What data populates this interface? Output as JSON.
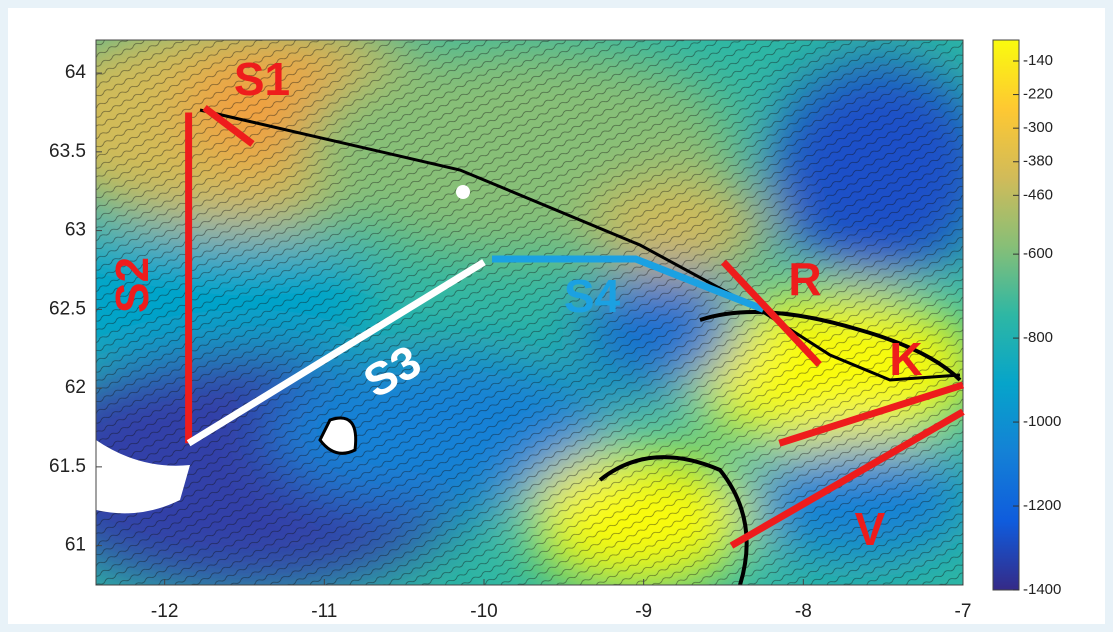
{
  "chart_data": {
    "type": "map",
    "xlim": [
      -12.43,
      -7
    ],
    "ylim": [
      60.75,
      64.21
    ],
    "xticks": [
      -12,
      -11,
      -10,
      -9,
      -8,
      -7
    ],
    "yticks": [
      61,
      61.5,
      62,
      62.5,
      63,
      63.5,
      64
    ],
    "colorbar": {
      "lim": [
        -90,
        -1400
      ],
      "ticks": [
        -140,
        -220,
        -300,
        -380,
        -460,
        -600,
        -800,
        -1000,
        -1200,
        -1400
      ],
      "colors": [
        "#f9fb0e",
        "#fec832",
        "#d1bb59",
        "#87bf77",
        "#2eb7a4",
        "#06a4ca",
        "#1481d6",
        "#0f5cdd",
        "#352a87"
      ]
    },
    "lines": [
      {
        "label": "S1",
        "color": "#ee1c1c",
        "x": [
          -11.75,
          -11.45
        ],
        "y": [
          63.78,
          63.55
        ]
      },
      {
        "label": "S2",
        "color": "#ee1c1c",
        "x": [
          -11.85,
          -11.85
        ],
        "y": [
          63.75,
          61.65
        ]
      },
      {
        "label": "S3",
        "color": "#ffffff",
        "x": [
          -11.85,
          -10.0
        ],
        "y": [
          61.65,
          62.8
        ]
      },
      {
        "label": "S4",
        "color": "#1ba1e2",
        "x": [
          -9.95,
          -9.05,
          -8.25
        ],
        "y": [
          62.82,
          62.82,
          62.5
        ]
      },
      {
        "label": "R",
        "color": "#ee1c1c",
        "x": [
          -8.5,
          -7.9
        ],
        "y": [
          62.8,
          62.15
        ]
      },
      {
        "label": "K",
        "color": "#ee1c1c",
        "x": [
          -8.15,
          -7.0
        ],
        "y": [
          61.65,
          62.02
        ]
      },
      {
        "label": "V",
        "color": "#ee1c1c",
        "x": [
          -8.45,
          -7.0
        ],
        "y": [
          61.0,
          61.85
        ]
      }
    ]
  }
}
